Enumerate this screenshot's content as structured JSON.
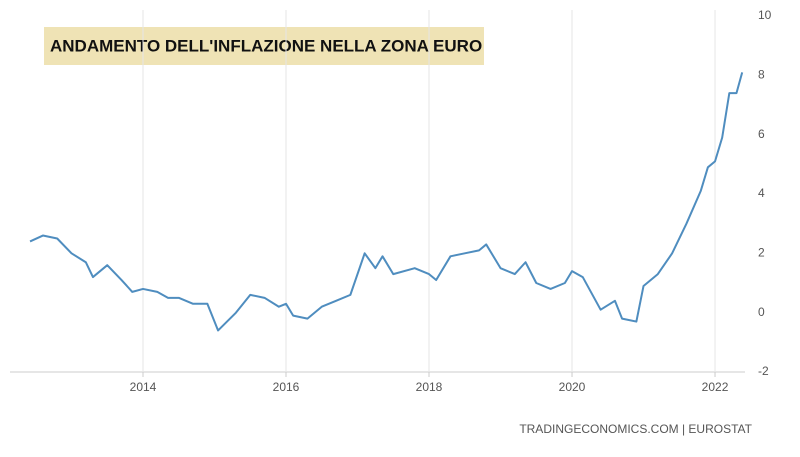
{
  "chart_data": {
    "type": "line",
    "title": "ANDAMENTO DELL'INFLAZIONE NELLA ZONA EURO",
    "source": "TRADINGECONOMICS.COM | EUROSTAT",
    "x": [
      2012.42,
      2012.6,
      2012.8,
      2013.0,
      2013.2,
      2013.3,
      2013.5,
      2013.7,
      2013.85,
      2014.0,
      2014.2,
      2014.35,
      2014.5,
      2014.7,
      2014.9,
      2015.05,
      2015.3,
      2015.5,
      2015.7,
      2015.9,
      2016.0,
      2016.1,
      2016.3,
      2016.5,
      2016.7,
      2016.9,
      2017.1,
      2017.25,
      2017.35,
      2017.5,
      2017.8,
      2018.0,
      2018.1,
      2018.3,
      2018.5,
      2018.7,
      2018.8,
      2019.0,
      2019.2,
      2019.35,
      2019.5,
      2019.7,
      2019.9,
      2020.0,
      2020.15,
      2020.4,
      2020.6,
      2020.7,
      2020.9,
      2021.0,
      2021.2,
      2021.4,
      2021.6,
      2021.8,
      2021.9,
      2022.0,
      2022.1,
      2022.2,
      2022.3,
      2022.38
    ],
    "series": [
      {
        "color": "#4f8dbf",
        "values": [
          2.4,
          2.6,
          2.5,
          2.0,
          1.7,
          1.2,
          1.6,
          1.1,
          0.7,
          0.8,
          0.7,
          0.5,
          0.5,
          0.3,
          0.3,
          -0.6,
          0.0,
          0.6,
          0.5,
          0.2,
          0.3,
          -0.1,
          -0.2,
          0.2,
          0.4,
          0.6,
          2.0,
          1.5,
          1.9,
          1.3,
          1.5,
          1.3,
          1.1,
          1.9,
          2.0,
          2.1,
          2.3,
          1.5,
          1.3,
          1.7,
          1.0,
          0.8,
          1.0,
          1.4,
          1.2,
          0.1,
          0.4,
          -0.2,
          -0.3,
          0.9,
          1.3,
          2.0,
          3.0,
          4.1,
          4.9,
          5.1,
          5.9,
          7.4,
          7.4,
          8.1
        ]
      }
    ],
    "xlim": [
      2012.4,
      2022.45
    ],
    "xticks": [
      2014,
      2016,
      2018,
      2020,
      2022
    ],
    "ylim": [
      -2,
      10
    ],
    "yticks": [
      -2,
      0,
      2,
      4,
      6,
      8,
      10
    ],
    "grid": true
  }
}
